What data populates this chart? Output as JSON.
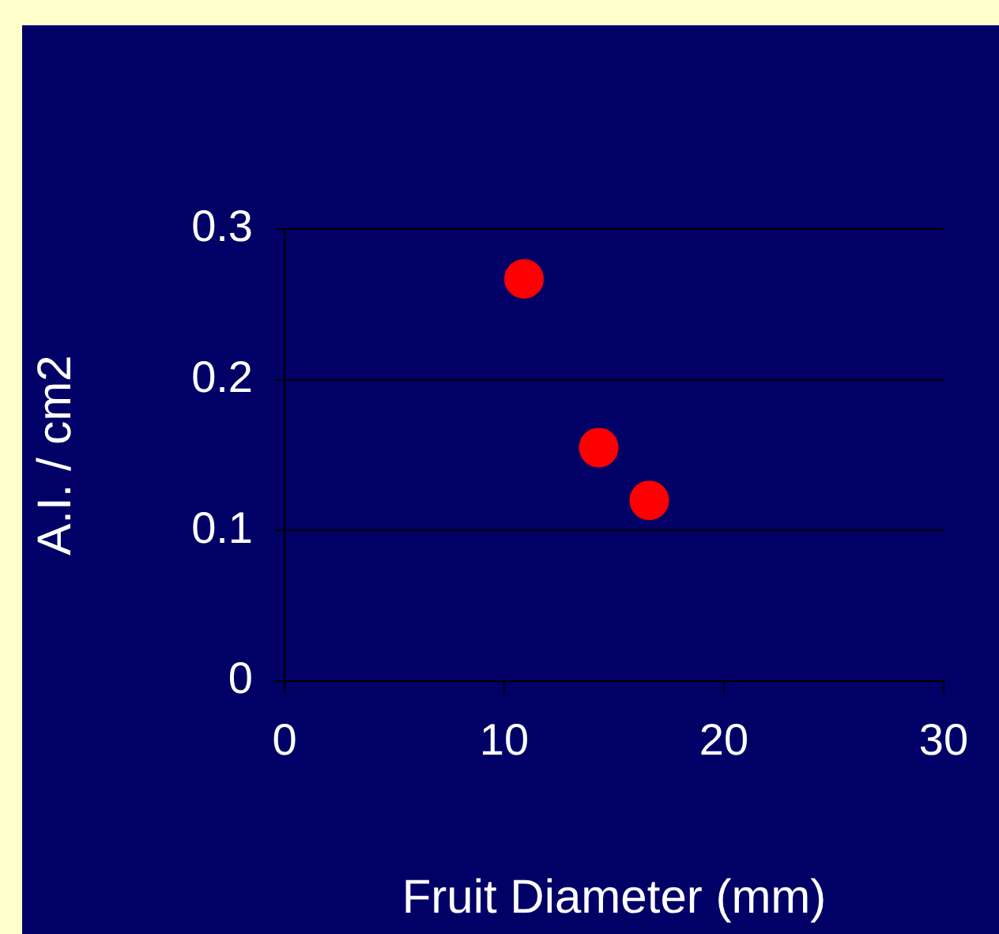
{
  "chart_data": {
    "type": "scatter",
    "xlabel": "Fruit Diameter (mm)",
    "ylabel": "A.I. / cm2",
    "x": [
      10.9,
      14.3,
      16.6
    ],
    "series": [
      {
        "color": "#ff0000",
        "values": [
          0.267,
          0.155,
          0.12
        ]
      }
    ],
    "xlim": [
      0,
      30
    ],
    "xticks": [
      0,
      10,
      20,
      30
    ],
    "ylim": [
      0,
      0.3
    ],
    "yticks": [
      0,
      0.1,
      0.2,
      0.3
    ],
    "grid": "y",
    "legend": false,
    "marker": "circle"
  }
}
